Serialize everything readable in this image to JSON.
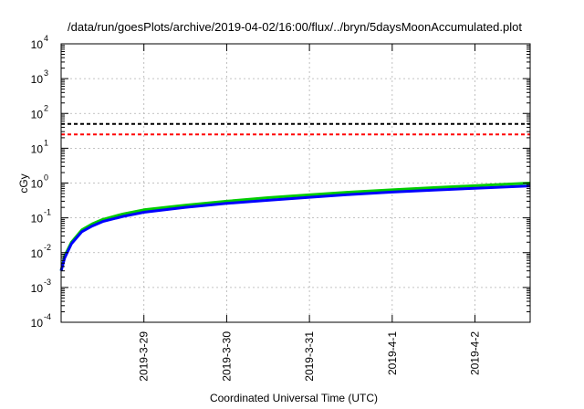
{
  "chart_data": {
    "type": "line",
    "title": "/data/run/goesPlots/archive/2019-04-02/16:00/flux/../bryn/5daysMoonAccumulated.plot",
    "xlabel": "Coordinated Universal Time (UTC)",
    "ylabel": "cGy",
    "yscale": "log",
    "ylim": [
      0.0001,
      10000
    ],
    "xlim": [
      "2019-03-28 00:00",
      "2019-04-02 16:00"
    ],
    "grid": true,
    "x_ticks": [
      "2019-3-29",
      "2019-3-30",
      "2019-3-31",
      "2019-4-1",
      "2019-4-2"
    ],
    "y_ticks": [
      {
        "base": "10",
        "exp": "-4",
        "value": 0.0001
      },
      {
        "base": "10",
        "exp": "-3",
        "value": 0.001
      },
      {
        "base": "10",
        "exp": "-2",
        "value": 0.01
      },
      {
        "base": "10",
        "exp": "-1",
        "value": 0.1
      },
      {
        "base": "10",
        "exp": "0",
        "value": 1
      },
      {
        "base": "10",
        "exp": "1",
        "value": 10
      },
      {
        "base": "10",
        "exp": "2",
        "value": 100
      },
      {
        "base": "10",
        "exp": "3",
        "value": 1000
      },
      {
        "base": "10",
        "exp": "4",
        "value": 10000
      }
    ],
    "reference_lines": [
      {
        "value": 50,
        "color": "#000000",
        "style": "dashed"
      },
      {
        "value": 25,
        "color": "#ff0000",
        "style": "dashed"
      }
    ],
    "series": [
      {
        "color": "#00cc00",
        "x": [
          "2019-03-28 00:00",
          "2019-03-28 01:00",
          "2019-03-28 03:00",
          "2019-03-28 06:00",
          "2019-03-28 09:00",
          "2019-03-28 12:00",
          "2019-03-28 18:00",
          "2019-03-29 00:00",
          "2019-03-29 12:00",
          "2019-03-30 00:00",
          "2019-03-30 12:00",
          "2019-03-31 00:00",
          "2019-03-31 12:00",
          "2019-04-01 00:00",
          "2019-04-01 12:00",
          "2019-04-02 00:00",
          "2019-04-02 16:00"
        ],
        "y": [
          0.003,
          0.008,
          0.02,
          0.045,
          0.067,
          0.09,
          0.13,
          0.17,
          0.23,
          0.3,
          0.38,
          0.46,
          0.55,
          0.64,
          0.74,
          0.84,
          1.0
        ]
      },
      {
        "color": "#0000ff",
        "x": [
          "2019-03-28 00:00",
          "2019-03-28 01:00",
          "2019-03-28 03:00",
          "2019-03-28 06:00",
          "2019-03-28 09:00",
          "2019-03-28 12:00",
          "2019-03-28 18:00",
          "2019-03-29 00:00",
          "2019-03-29 12:00",
          "2019-03-30 00:00",
          "2019-03-30 12:00",
          "2019-03-31 00:00",
          "2019-03-31 12:00",
          "2019-04-01 00:00",
          "2019-04-01 12:00",
          "2019-04-02 00:00",
          "2019-04-02 16:00"
        ],
        "y": [
          0.003,
          0.007,
          0.018,
          0.04,
          0.058,
          0.078,
          0.11,
          0.145,
          0.2,
          0.26,
          0.32,
          0.39,
          0.47,
          0.55,
          0.63,
          0.71,
          0.83
        ]
      }
    ]
  }
}
